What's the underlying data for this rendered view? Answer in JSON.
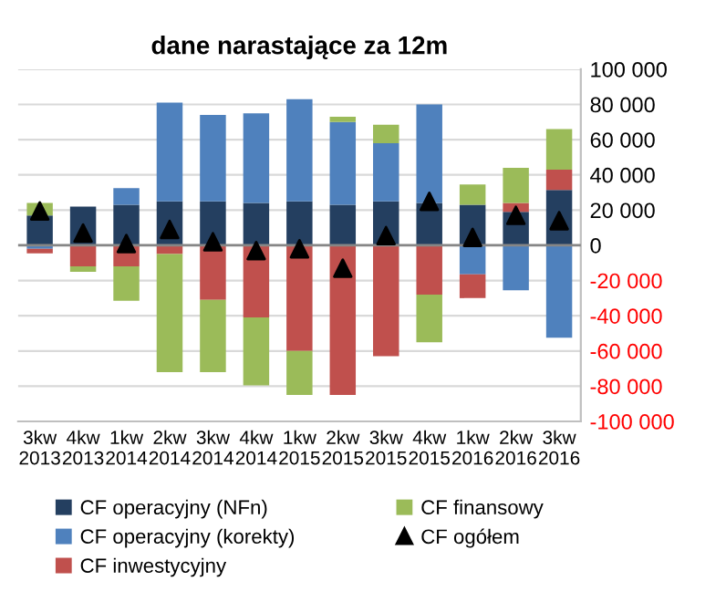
{
  "chart_data": {
    "type": "bar",
    "title": "dane narastające za 12m",
    "stacked": true,
    "categories": [
      "3kw\n2013",
      "4kw\n2013",
      "1kw\n2014",
      "2kw\n2014",
      "3kw\n2014",
      "4kw\n2014",
      "1kw\n2015",
      "2kw\n2015",
      "3kw\n2015",
      "4kw\n2015",
      "1kw\n2016",
      "2kw\n2016",
      "3kw\n2016"
    ],
    "series": [
      {
        "name": "CF operacyjny (NFn)",
        "color": "#243f60",
        "values": [
          17000,
          22000,
          23000,
          25000,
          25000,
          24000,
          25000,
          23000,
          25000,
          24000,
          23000,
          19000,
          31500
        ]
      },
      {
        "name": "CF operacyjny (korekty)",
        "color": "#4f81bd",
        "values": [
          -2000,
          0,
          9500,
          56000,
          49000,
          51000,
          58000,
          47000,
          33000,
          56000,
          -16500,
          -25500,
          -52500
        ]
      },
      {
        "name": "CF inwestycyjny",
        "color": "#c0504d",
        "values": [
          -2500,
          -12000,
          -12000,
          -5000,
          -31000,
          -41000,
          -60000,
          -85000,
          -63000,
          -28000,
          -13500,
          5000,
          11500
        ]
      },
      {
        "name": "CF finansowy",
        "color": "#9bbb59",
        "values": [
          7000,
          -3000,
          -19500,
          -67000,
          -41000,
          -38500,
          -25000,
          3000,
          10500,
          -27000,
          11500,
          20000,
          23000
        ]
      },
      {
        "name": "CF ogółem",
        "type": "scatter",
        "color": "#000000",
        "marker": "triangle",
        "x": [
          "3kw\n2013",
          "4kw\n2013",
          "1kw\n2014",
          "2kw\n2014",
          "3kw\n2014",
          "4kw\n2014",
          "1kw\n2015",
          "2kw\n2015",
          "3kw\n2015",
          "4kw\n2015",
          "1kw\n2016",
          "2kw\n2016",
          "3kw\n2016"
        ],
        "values": [
          19500,
          7000,
          1000,
          9000,
          2000,
          -3000,
          -2000,
          -13000,
          5500,
          25000,
          4500,
          17000,
          14000
        ]
      }
    ],
    "ylim": [
      -100000,
      100000
    ],
    "yticks": [
      {
        "value": -100000,
        "label": "-100 000"
      },
      {
        "value": -80000,
        "label": "-80 000"
      },
      {
        "value": -60000,
        "label": "-60 000"
      },
      {
        "value": -40000,
        "label": "-40 000"
      },
      {
        "value": -20000,
        "label": "-20 000"
      },
      0,
      {
        "value": 20000,
        "label": "20 000"
      },
      {
        "value": 40000,
        "label": "40 000"
      },
      {
        "value": 60000,
        "label": "60 000"
      },
      {
        "value": 80000,
        "label": "80 000"
      },
      {
        "value": 100000,
        "label": "100 000"
      }
    ],
    "grid": "y",
    "legend": "bottom"
  }
}
